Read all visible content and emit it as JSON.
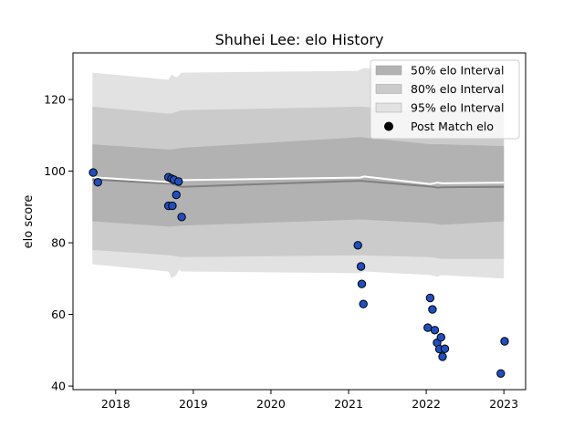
{
  "chart_data": {
    "type": "line",
    "title": "Shuhei Lee: elo History",
    "xlabel": "",
    "ylabel": "elo score",
    "xlim": [
      2017.45,
      2023.28
    ],
    "ylim": [
      39,
      133
    ],
    "x_ticks": [
      2018,
      2019,
      2020,
      2021,
      2022,
      2023
    ],
    "x_tick_labels": [
      "2018",
      "2019",
      "2020",
      "2021",
      "2022",
      "2023"
    ],
    "y_ticks": [
      40,
      60,
      80,
      100,
      120
    ],
    "y_tick_labels": [
      "40",
      "60",
      "80",
      "100",
      "120"
    ],
    "grid": false,
    "legend_position": "top-right",
    "legend": [
      {
        "label": "50% elo Interval",
        "kind": "band",
        "color": "#b2b2b2"
      },
      {
        "label": "80% elo Interval",
        "kind": "band",
        "color": "#cbcbcb"
      },
      {
        "label": "95% elo Interval",
        "kind": "band",
        "color": "#e2e2e2"
      },
      {
        "label": "Post Match elo",
        "kind": "marker",
        "color": "#000000"
      }
    ],
    "bands": [
      {
        "name": "95% elo Interval",
        "color": "#e2e2e2",
        "x": [
          2017.7,
          2018.68,
          2018.72,
          2018.78,
          2018.82,
          2018.84,
          2021.12,
          2021.2,
          2022.05,
          2022.15,
          2022.2,
          2023.0
        ],
        "upper": [
          127.5,
          125.5,
          127.0,
          126.2,
          126.8,
          127.5,
          128.0,
          128.8,
          127.5,
          126.5,
          127.0,
          127.0
        ],
        "lower": [
          74.0,
          72.0,
          70.0,
          71.0,
          72.5,
          72.0,
          71.5,
          72.0,
          71.0,
          70.5,
          71.0,
          70.0
        ]
      },
      {
        "name": "80% elo Interval",
        "color": "#cbcbcb",
        "x": [
          2017.7,
          2018.7,
          2018.85,
          2021.15,
          2022.05,
          2022.2,
          2023.0
        ],
        "upper": [
          118.0,
          116.0,
          117.0,
          118.0,
          116.5,
          116.8,
          116.5
        ],
        "lower": [
          78.0,
          76.5,
          76.0,
          76.5,
          76.0,
          75.5,
          75.5
        ]
      },
      {
        "name": "50% elo Interval",
        "color": "#b2b2b2",
        "x": [
          2017.7,
          2018.7,
          2018.85,
          2021.15,
          2022.05,
          2022.2,
          2023.0
        ],
        "upper": [
          107.5,
          106.0,
          106.5,
          109.5,
          107.5,
          107.5,
          107.0
        ],
        "lower": [
          86.0,
          84.5,
          84.8,
          86.5,
          85.5,
          85.0,
          86.0
        ]
      }
    ],
    "mean_line": {
      "x": [
        2017.7,
        2018.72,
        2018.85,
        2021.15,
        2022.05,
        2022.15,
        2022.2,
        2023.0
      ],
      "y": [
        97.7,
        96.5,
        95.6,
        97.3,
        95.7,
        95.4,
        95.5,
        95.6
      ],
      "color": "#808080"
    },
    "upper_line": {
      "x": [
        2017.7,
        2018.72,
        2018.85,
        2021.15,
        2021.2,
        2022.05,
        2022.15,
        2022.2,
        2023.0
      ],
      "y": [
        98.3,
        96.9,
        97.5,
        98.2,
        98.5,
        96.4,
        96.8,
        96.6,
        96.8
      ],
      "color": "#ffffff"
    },
    "series": [
      {
        "name": "Post Match elo",
        "color": "#1f4fbf",
        "x": [
          2017.71,
          2017.77,
          2018.68,
          2018.72,
          2018.75,
          2018.78,
          2018.81,
          2018.85,
          2018.68,
          2018.73,
          2021.12,
          2021.16,
          2021.17,
          2021.19,
          2022.02,
          2022.05,
          2022.08,
          2022.11,
          2022.14,
          2022.17,
          2022.19,
          2022.21,
          2022.24,
          2022.96,
          2023.01
        ],
        "y": [
          99.6,
          96.9,
          98.3,
          97.9,
          97.6,
          93.4,
          97.1,
          87.2,
          90.3,
          90.3,
          79.3,
          73.4,
          68.5,
          62.9,
          56.3,
          64.6,
          61.4,
          55.6,
          52.1,
          50.3,
          53.6,
          48.2,
          50.4,
          43.5,
          52.5
        ]
      }
    ]
  }
}
